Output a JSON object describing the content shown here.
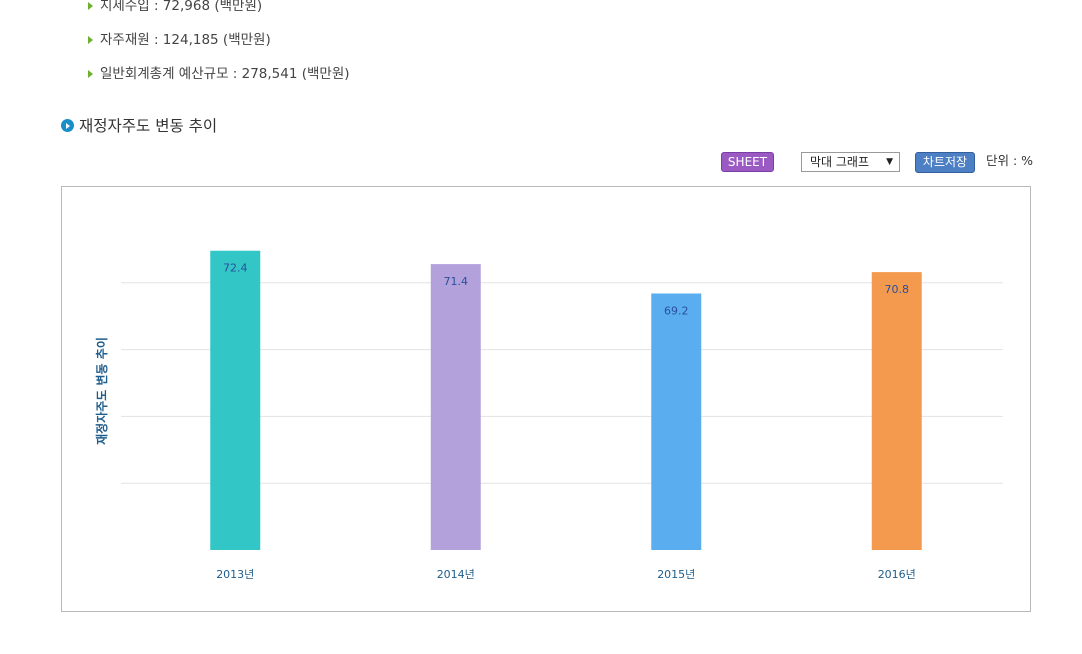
{
  "summary": {
    "items": [
      {
        "label": "지세수입 : 72,968 (백만원)"
      },
      {
        "label": "자주재원 : 124,185 (백만원)"
      },
      {
        "label": "일반회계총계 예산규모 : 278,541 (백만원)"
      }
    ]
  },
  "section": {
    "title": "재정자주도 변동 추이"
  },
  "toolbar": {
    "sheet_label": "SHEET",
    "chart_type_selected": "막대 그래프",
    "save_label": "차트저장",
    "unit_label": "단위 : %"
  },
  "chart_data": {
    "type": "bar",
    "ylabel": "재정자주도 변동 추이",
    "categories": [
      "2013년",
      "2014년",
      "2015년",
      "2016년"
    ],
    "values": [
      72.4,
      71.4,
      69.2,
      70.8
    ],
    "colors": [
      "#33c6c6",
      "#b3a1dc",
      "#5aaeef",
      "#f39a4f"
    ],
    "ylim": [
      50,
      75
    ],
    "grid": true,
    "data_labels": true
  }
}
